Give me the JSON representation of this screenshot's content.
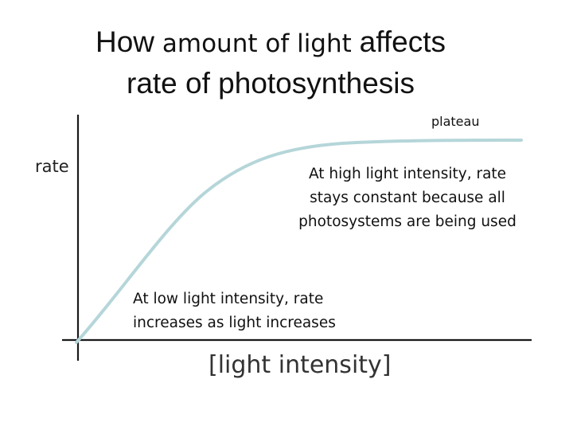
{
  "title": {
    "line1_a": "How",
    "line1_b": " amount of light ",
    "line1_c": "affects",
    "line2": "rate of photosynthesis"
  },
  "axes": {
    "y_label": "rate",
    "x_label": "[light intensity]"
  },
  "annotations": {
    "plateau": "plateau",
    "high_intensity": "At high light intensity, rate stays constant because all photosystems are being used",
    "low_intensity_line1": "At low light intensity, rate",
    "low_intensity_line2": "increases as light increases"
  },
  "colors": {
    "curve": "#b5d6d9",
    "axis": "#1a1a1a",
    "text": "#111111"
  }
}
